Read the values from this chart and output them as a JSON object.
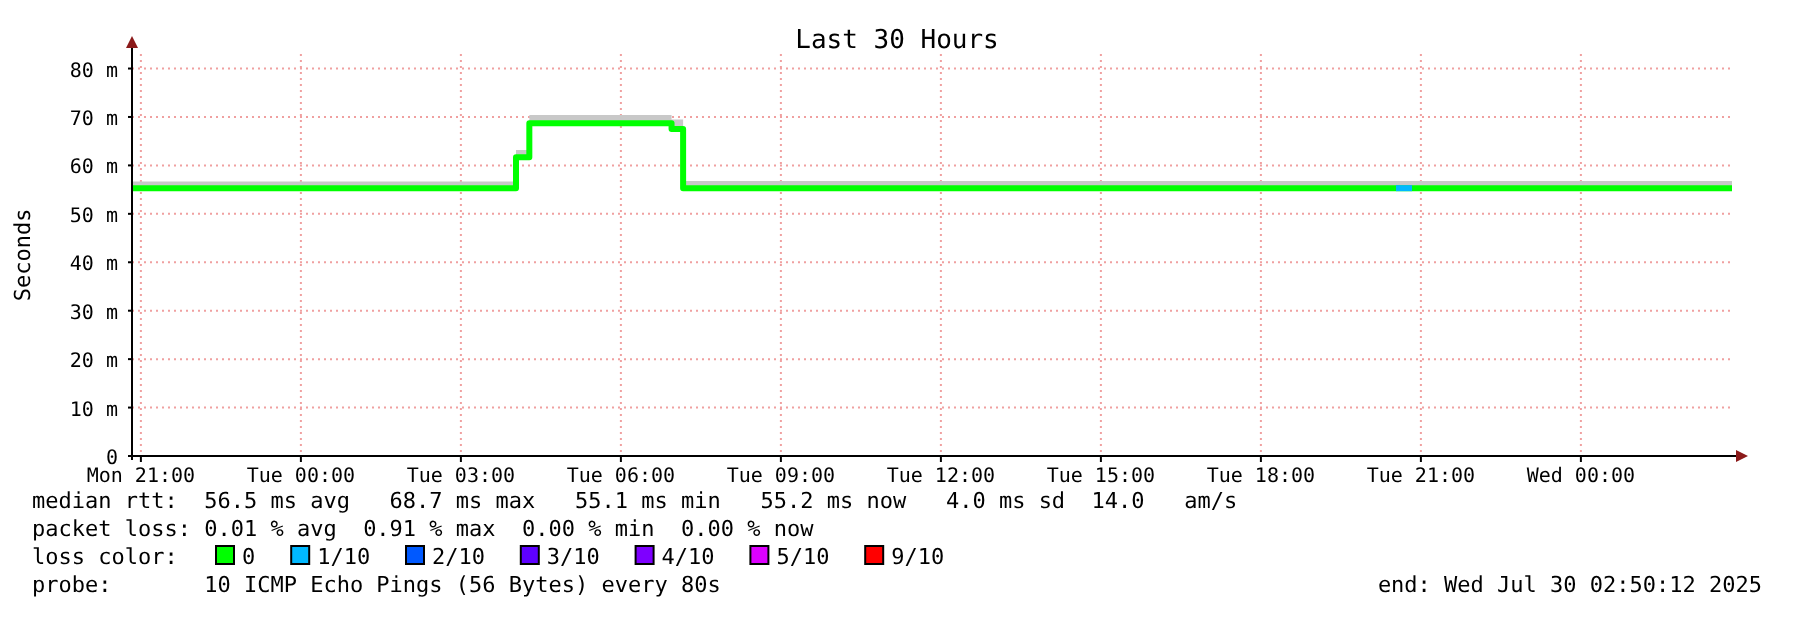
{
  "chart_data": {
    "type": "step",
    "title": "Last 30 Hours",
    "ylabel": "Seconds",
    "legend_title": "loss color:",
    "legend": "bottom",
    "grid": true,
    "xlim": [
      "2025-07-28T20:50",
      "2025-07-30T02:50"
    ],
    "xticks": [
      {
        "value": "2025-07-28T21:00",
        "label": "Mon 21:00"
      },
      {
        "value": "2025-07-29T00:00",
        "label": "Tue 00:00"
      },
      {
        "value": "2025-07-29T03:00",
        "label": "Tue 03:00"
      },
      {
        "value": "2025-07-29T06:00",
        "label": "Tue 06:00"
      },
      {
        "value": "2025-07-29T09:00",
        "label": "Tue 09:00"
      },
      {
        "value": "2025-07-29T12:00",
        "label": "Tue 12:00"
      },
      {
        "value": "2025-07-29T15:00",
        "label": "Tue 15:00"
      },
      {
        "value": "2025-07-29T18:00",
        "label": "Tue 18:00"
      },
      {
        "value": "2025-07-29T21:00",
        "label": "Tue 21:00"
      },
      {
        "value": "2025-07-30T00:00",
        "label": "Wed 00:00"
      }
    ],
    "ylim": [
      0,
      83
    ],
    "yticks": [
      0,
      {
        "value": 10,
        "label": "10 m"
      },
      {
        "value": 20,
        "label": "20 m"
      },
      {
        "value": 30,
        "label": "30 m"
      },
      {
        "value": 40,
        "label": "40 m"
      },
      {
        "value": 50,
        "label": "50 m"
      },
      {
        "value": 60,
        "label": "60 m"
      },
      {
        "value": 70,
        "label": "70 m"
      },
      {
        "value": 80,
        "label": "80 m"
      }
    ],
    "series": [
      {
        "name": "0",
        "color": "#00ff00",
        "x": [
          "2025-07-28T20:50",
          "2025-07-29T04:02",
          "2025-07-29T04:17",
          "2025-07-29T06:57",
          "2025-07-29T07:10",
          "2025-07-30T02:50"
        ],
        "values": [
          55.3,
          61.7,
          68.7,
          67.5,
          55.3,
          55.3
        ],
        "lower": [
          55.3,
          61.7,
          68.7,
          67.5,
          55.3,
          55.3
        ],
        "upper": [
          56.7,
          63.2,
          70.4,
          69.5,
          56.8,
          56.8
        ]
      },
      {
        "name": "1/10",
        "color": "#00b8ff",
        "x": [
          "2025-07-29T20:32",
          "2025-07-29T20:50"
        ],
        "values": [
          55.3,
          55.3
        ]
      },
      {
        "name": "2/10",
        "color": "#0059ff"
      },
      {
        "name": "3/10",
        "color": "#5e00ff"
      },
      {
        "name": "4/10",
        "color": "#7e00ff"
      },
      {
        "name": "5/10",
        "color": "#dd00ff"
      },
      {
        "name": "9/10",
        "color": "#ff0000"
      }
    ],
    "annotations": [
      "median rtt:  56.5 ms avg   68.7 ms max   55.1 ms min   55.2 ms now   4.0 ms sd  14.0   am/s",
      "packet loss: 0.01 % avg  0.91 % max  0.00 % min  0.00 % now",
      "probe:       10 ICMP Echo Pings (56 Bytes) every 80s",
      "end: Wed Jul 30 02:50:12 2025"
    ]
  }
}
